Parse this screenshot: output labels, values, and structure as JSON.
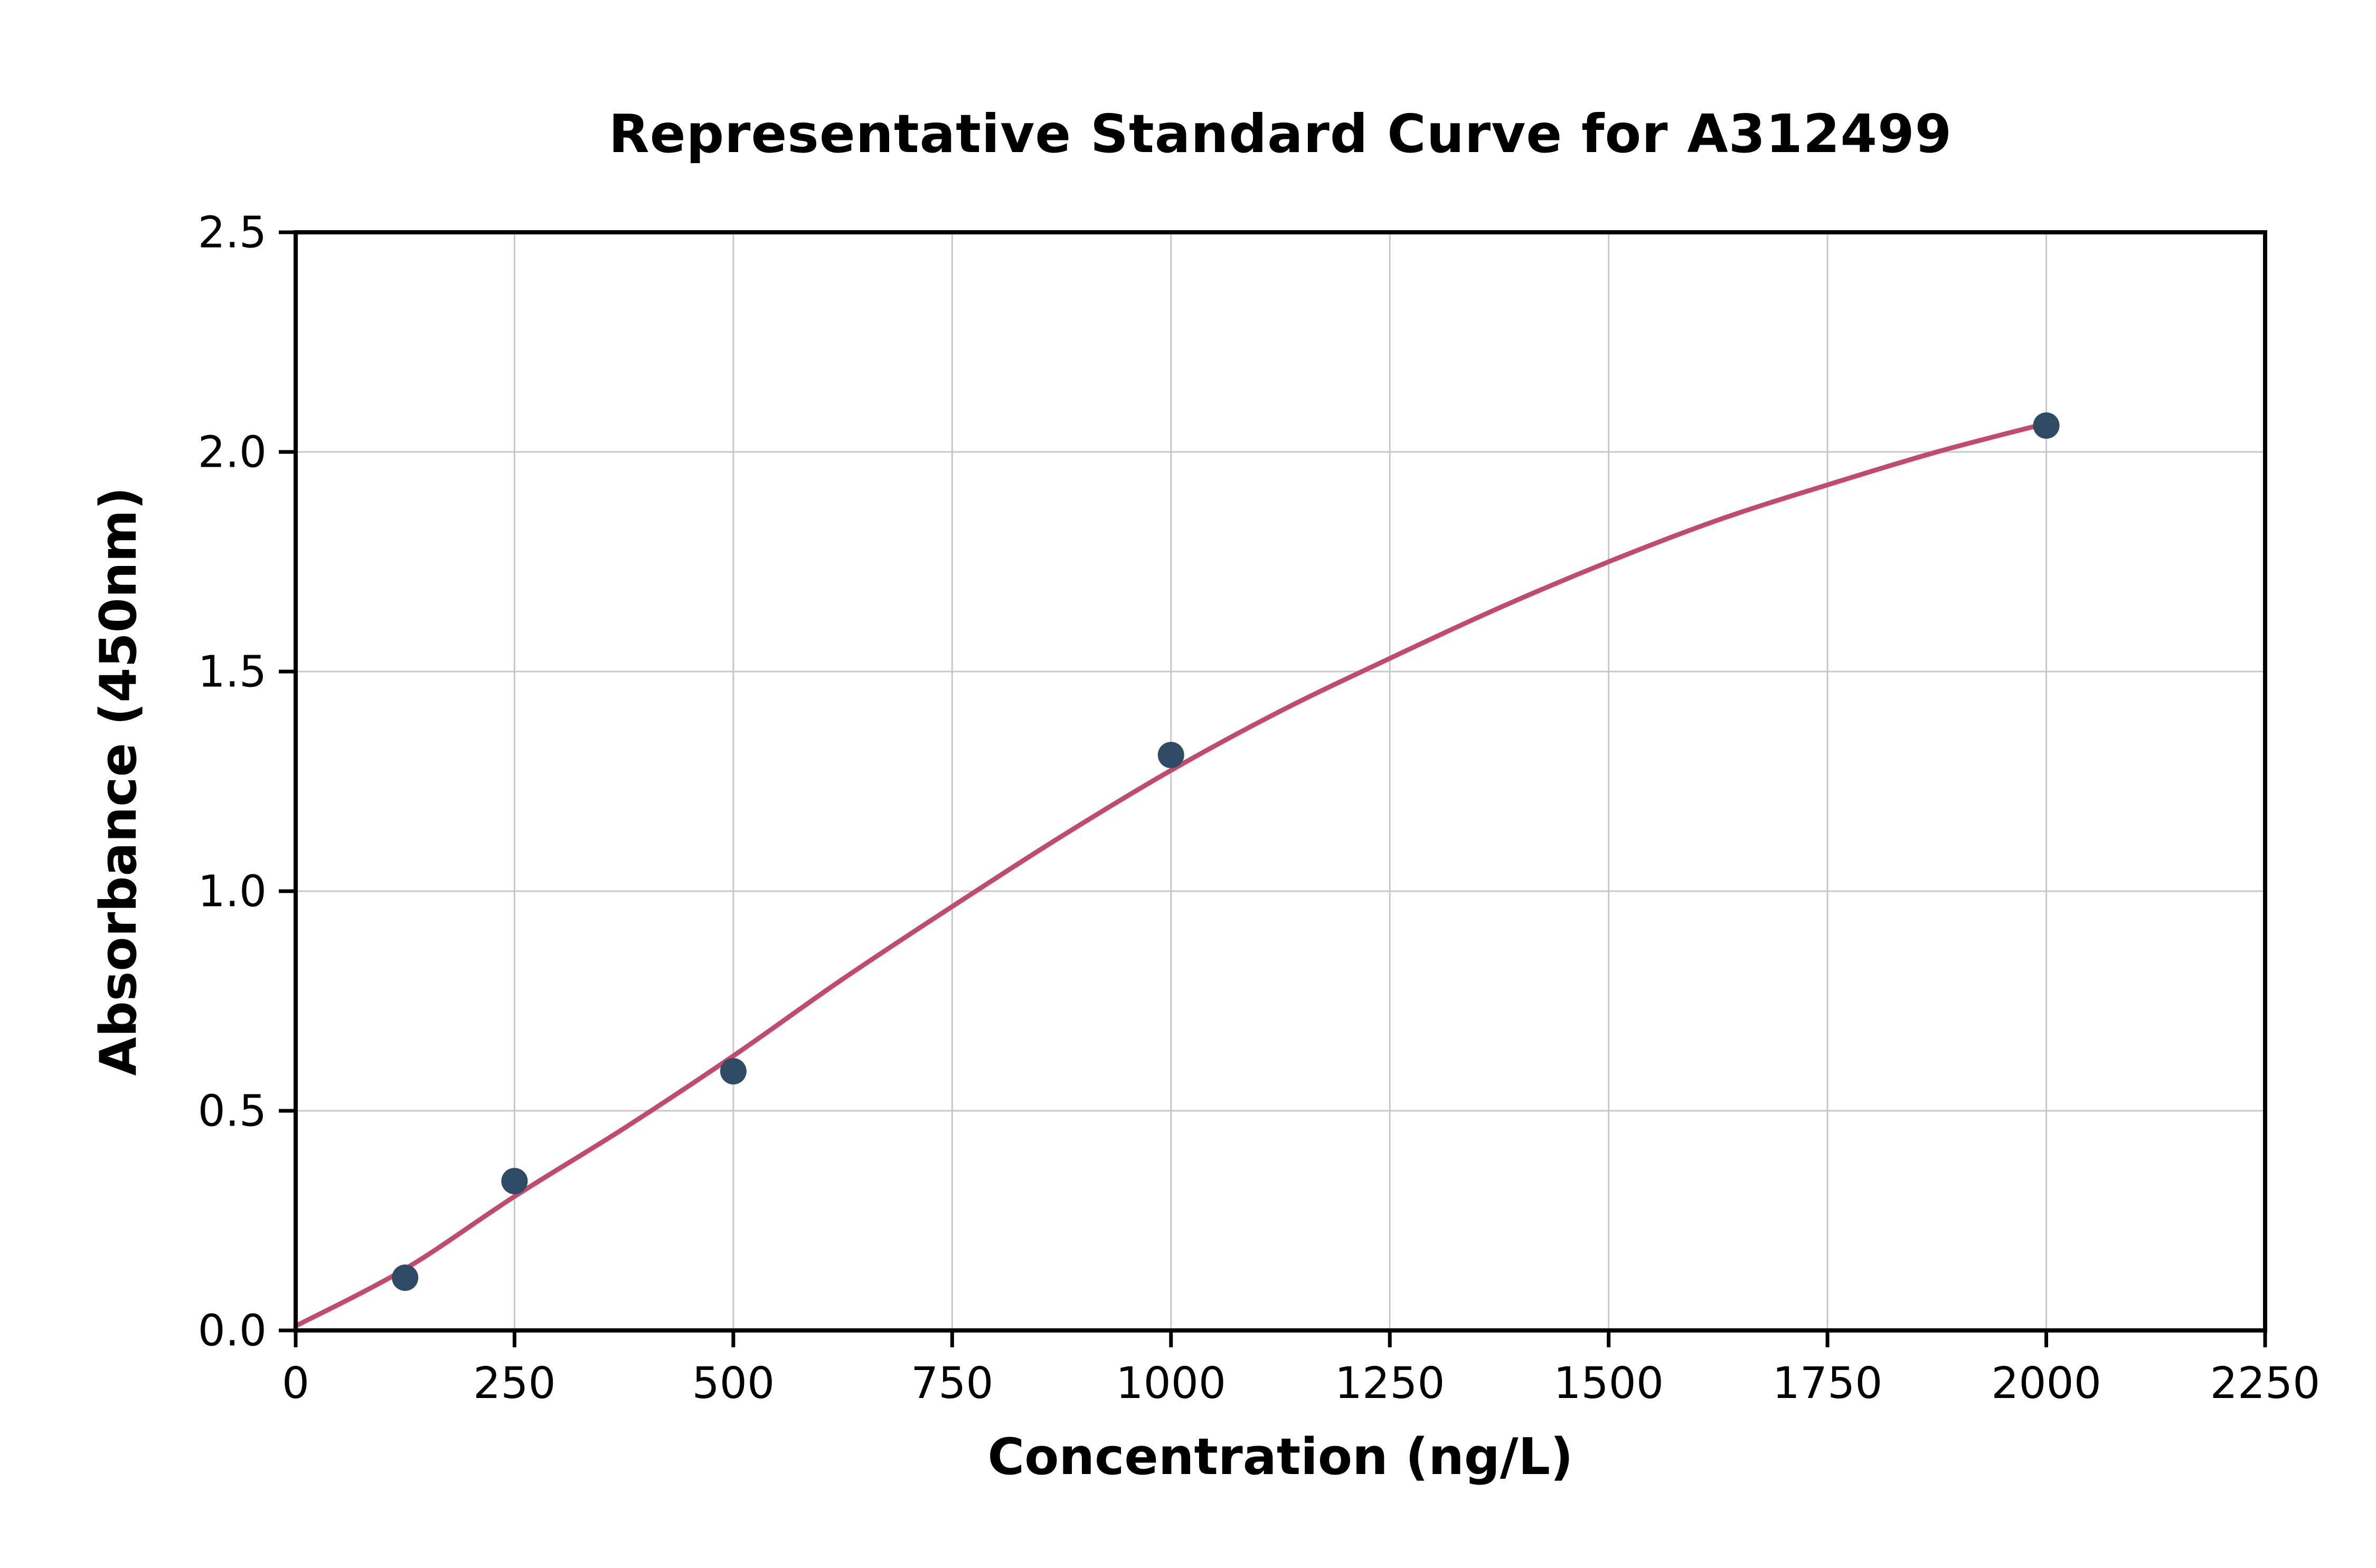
{
  "chart_data": {
    "type": "scatter",
    "title": "Representative Standard Curve for A312499",
    "xlabel": "Concentration (ng/L)",
    "ylabel": "Absorbance (450nm)",
    "xlim": [
      0,
      2250
    ],
    "ylim": [
      0,
      2.5
    ],
    "xticks": [
      0,
      250,
      500,
      750,
      1000,
      1250,
      1500,
      1750,
      2000,
      2250
    ],
    "xtick_labels": [
      "0",
      "250",
      "500",
      "750",
      "1000",
      "1250",
      "1500",
      "1750",
      "2000",
      "2250"
    ],
    "yticks": [
      0,
      0.5,
      1.0,
      1.5,
      2.0,
      2.5
    ],
    "ytick_labels": [
      "0.0",
      "0.5",
      "1.0",
      "1.5",
      "2.0",
      "2.5"
    ],
    "grid": true,
    "legend": "none",
    "points": [
      [
        125,
        0.12
      ],
      [
        250,
        0.34
      ],
      [
        500,
        0.59
      ],
      [
        1000,
        1.31
      ],
      [
        2000,
        2.06
      ]
    ],
    "fit_curve": [
      [
        0,
        0.01
      ],
      [
        125,
        0.14
      ],
      [
        250,
        0.305
      ],
      [
        375,
        0.46
      ],
      [
        500,
        0.625
      ],
      [
        625,
        0.8
      ],
      [
        750,
        0.965
      ],
      [
        875,
        1.125
      ],
      [
        1000,
        1.275
      ],
      [
        1125,
        1.41
      ],
      [
        1250,
        1.53
      ],
      [
        1375,
        1.645
      ],
      [
        1500,
        1.75
      ],
      [
        1625,
        1.845
      ],
      [
        1750,
        1.925
      ],
      [
        1875,
        2.0
      ],
      [
        2000,
        2.065
      ]
    ],
    "colors": {
      "curve": "#c14b6f",
      "points": "#2f4b66",
      "grid": "#c8c8c8",
      "axis": "#000000",
      "background": "#ffffff"
    }
  }
}
